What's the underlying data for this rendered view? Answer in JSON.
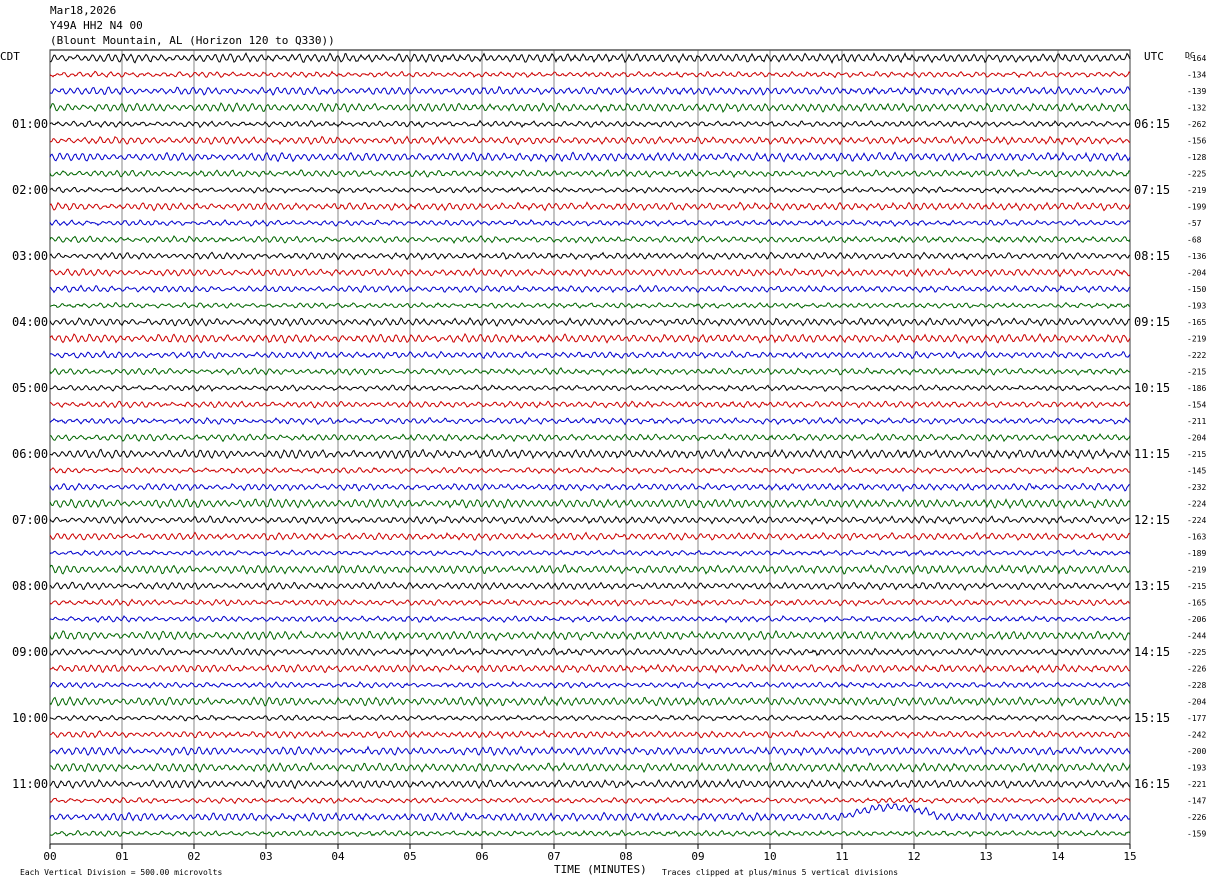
{
  "header": {
    "date": "Mar18,2026",
    "station": "Y49A HH2 N4 00",
    "location": "(Blount Mountain, AL (Horizon 120 to Q330))"
  },
  "labels": {
    "left_tz": "CDT",
    "right_tz": "UTC",
    "dc_header": "DC",
    "xlabel": "TIME (MINUTES)",
    "footer_left": "Each Vertical Division =  500.00 microvolts",
    "footer_right": "Traces clipped at plus/minus 5 vertical divisions"
  },
  "chart_data": {
    "type": "line",
    "title": "",
    "xlabel": "TIME (MINUTES)",
    "xlim": [
      0,
      15
    ],
    "x_ticks": [
      "00",
      "01",
      "02",
      "03",
      "04",
      "05",
      "06",
      "07",
      "08",
      "09",
      "10",
      "11",
      "12",
      "13",
      "14",
      "15"
    ],
    "trace_colors": [
      "#000000",
      "#cc0000",
      "#0000cc",
      "#006600"
    ],
    "grid": true,
    "rows_per_hour": 4,
    "row_count": 48,
    "left_hour_labels": [
      "01:00",
      "02:00",
      "03:00",
      "04:00",
      "05:00",
      "06:00",
      "07:00",
      "08:00",
      "09:00",
      "10:00",
      "11:00"
    ],
    "right_hour_labels": [
      "06:15",
      "07:15",
      "08:15",
      "09:15",
      "10:15",
      "11:15",
      "12:15",
      "13:15",
      "14:15",
      "15:15",
      "16:15"
    ],
    "dc_offsets": [
      "-164",
      "-134",
      "-139",
      "-132",
      "-262",
      "-156",
      "-128",
      "-225",
      "-219",
      "-199",
      "-57",
      "-68",
      "-136",
      "-204",
      "-150",
      "-193",
      "-165",
      "-219",
      "-222",
      "-215",
      "-186",
      "-154",
      "-211",
      "-204",
      "-215",
      "-145",
      "-232",
      "-224",
      "-224",
      "-163",
      "-189",
      "-219",
      "-215",
      "-165",
      "-206",
      "-244",
      "-225",
      "-226",
      "-228",
      "-204",
      "-177",
      "-242",
      "-200",
      "-193",
      "-221",
      "-147",
      "-226",
      "-159"
    ],
    "events": [
      {
        "row": 46,
        "start_min": 11.0,
        "end_min": 12.4,
        "description": "long-period swell"
      }
    ]
  }
}
